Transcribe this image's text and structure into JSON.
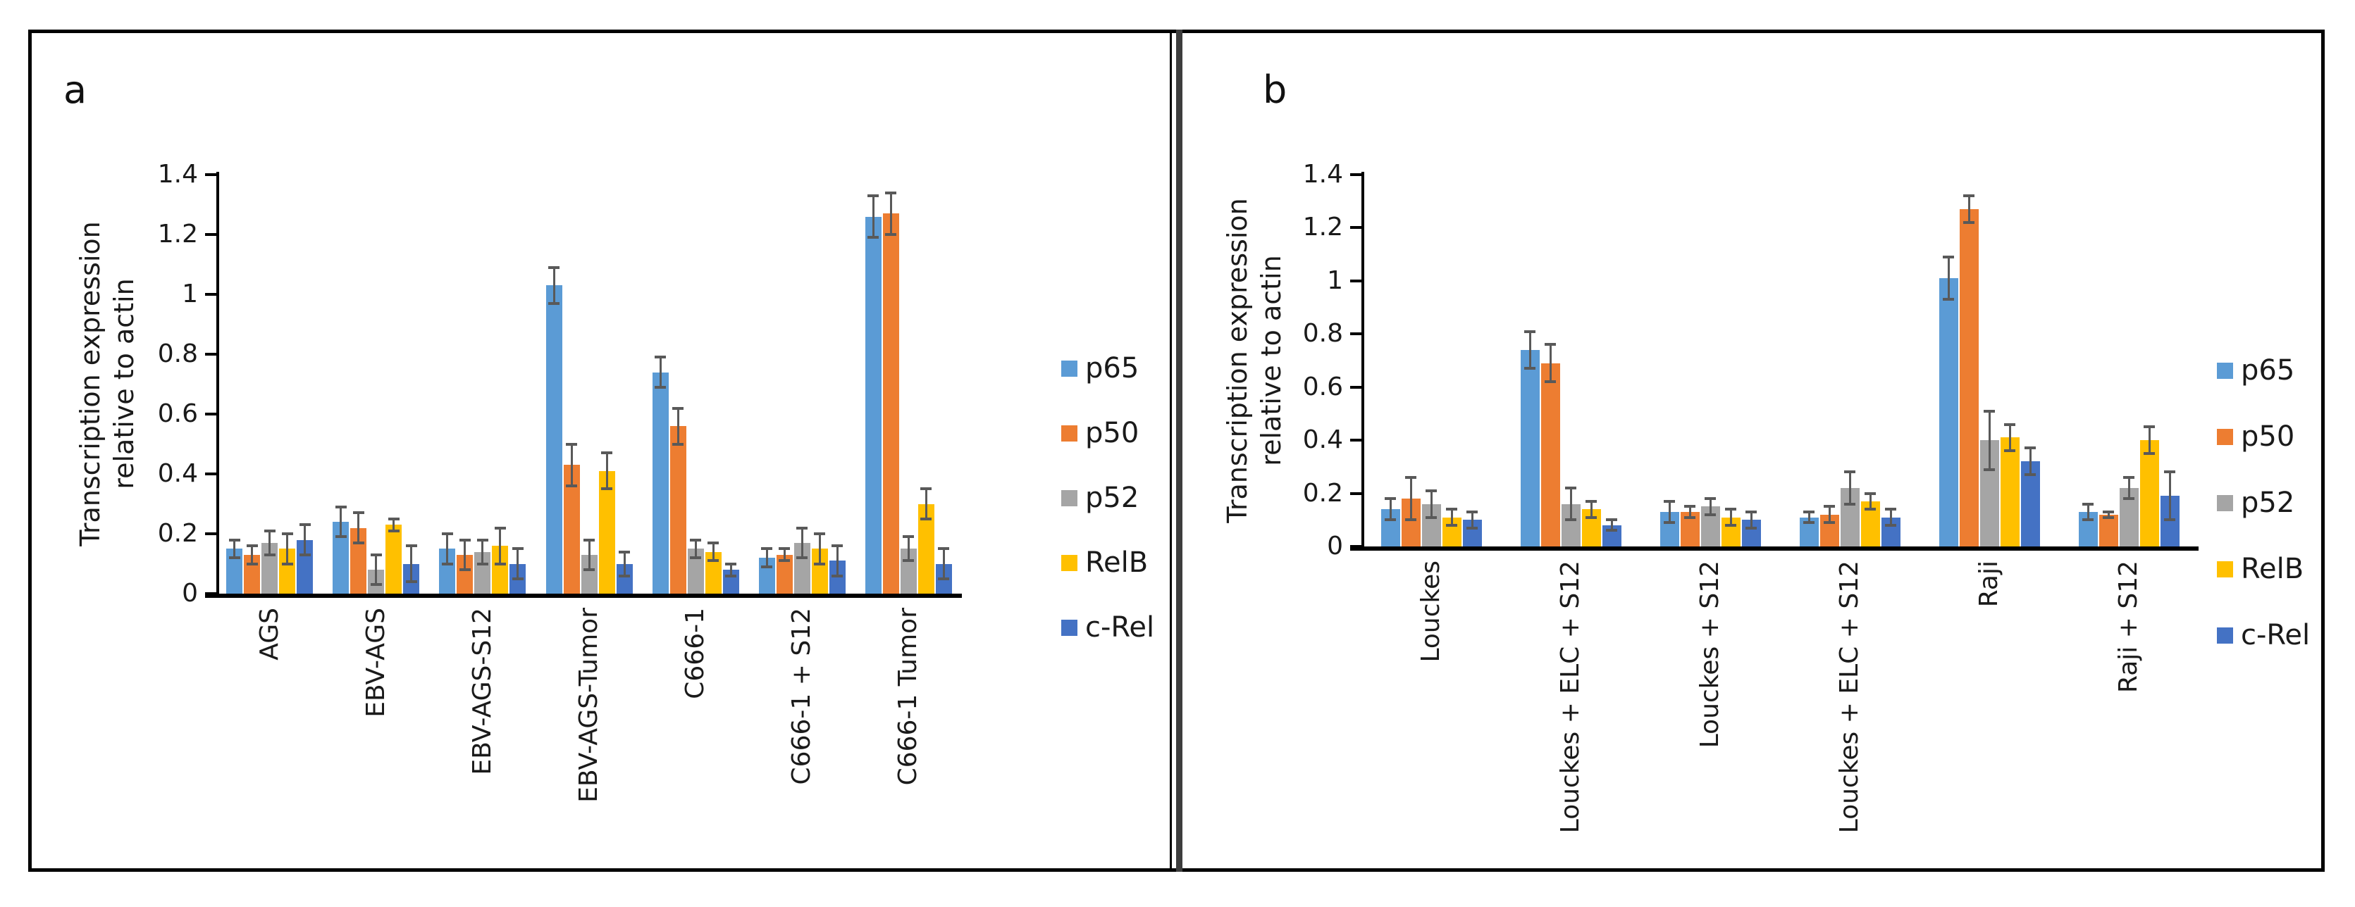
{
  "figure": {
    "background": "#ffffff",
    "border_color": "#000000",
    "panels": [
      {
        "letter": "a",
        "y_axis_label_line1": "Transcription expression",
        "y_axis_label_line2": "relative to actin",
        "y_tick_labels": [
          "1.4",
          "1.2",
          "1",
          "0.8",
          "0.6",
          "0.4",
          "0.2",
          "0"
        ]
      },
      {
        "letter": "b",
        "y_axis_label_line1": "Transcription expression",
        "y_axis_label_line2": "relative to actin",
        "y_tick_labels": [
          "1.4",
          "1.2",
          "1",
          "0.8",
          "0.6",
          "0.4",
          "0.2",
          "0"
        ]
      }
    ]
  },
  "chart_data": [
    {
      "type": "bar",
      "panel": "a",
      "title": "a",
      "ylabel": "Transcription expression relative to actin",
      "xlabel": "",
      "ylim": [
        0,
        1.4
      ],
      "ytick_step": 0.2,
      "grid": false,
      "legend_position": "right",
      "error_bar_color": "#595959",
      "axis_color": "#000000",
      "categories": [
        "AGS",
        "EBV-AGS",
        "EBV-AGS-S12",
        "EBV-AGS-Tumor",
        "C666-1",
        "C666-1 + S12",
        "C666-1 Tumor"
      ],
      "series": [
        {
          "name": "p65",
          "color": "#5B9BD5",
          "values": [
            0.15,
            0.24,
            0.15,
            1.03,
            0.74,
            0.12,
            1.26
          ],
          "errors": [
            0.03,
            0.05,
            0.05,
            0.06,
            0.05,
            0.03,
            0.07
          ]
        },
        {
          "name": "p50",
          "color": "#ED7D31",
          "values": [
            0.13,
            0.22,
            0.13,
            0.43,
            0.56,
            0.13,
            1.27
          ],
          "errors": [
            0.03,
            0.05,
            0.05,
            0.07,
            0.06,
            0.02,
            0.07
          ]
        },
        {
          "name": "p52",
          "color": "#A5A5A5",
          "values": [
            0.17,
            0.08,
            0.14,
            0.13,
            0.15,
            0.17,
            0.15
          ],
          "errors": [
            0.04,
            0.05,
            0.04,
            0.05,
            0.03,
            0.05,
            0.04
          ]
        },
        {
          "name": "RelB",
          "color": "#FFC000",
          "values": [
            0.15,
            0.23,
            0.16,
            0.41,
            0.14,
            0.15,
            0.3
          ],
          "errors": [
            0.05,
            0.02,
            0.06,
            0.06,
            0.03,
            0.05,
            0.05
          ]
        },
        {
          "name": "c-Rel",
          "color": "#4472C4",
          "values": [
            0.18,
            0.1,
            0.1,
            0.1,
            0.08,
            0.11,
            0.1
          ],
          "errors": [
            0.05,
            0.06,
            0.05,
            0.04,
            0.02,
            0.05,
            0.05
          ]
        }
      ]
    },
    {
      "type": "bar",
      "panel": "b",
      "title": "b",
      "ylabel": "Transcription expression relative to actin",
      "xlabel": "",
      "ylim": [
        0,
        1.4
      ],
      "ytick_step": 0.2,
      "grid": false,
      "legend_position": "right",
      "error_bar_color": "#595959",
      "axis_color": "#000000",
      "categories": [
        "Louckes",
        "Louckes + ELC + S12",
        "Louckes + S12",
        "Louckes + ELC + S12",
        "Raji",
        "Raji + S12"
      ],
      "series": [
        {
          "name": "p65",
          "color": "#5B9BD5",
          "values": [
            0.14,
            0.74,
            0.13,
            0.11,
            1.01,
            0.13
          ],
          "errors": [
            0.04,
            0.07,
            0.04,
            0.02,
            0.08,
            0.03
          ]
        },
        {
          "name": "p50",
          "color": "#ED7D31",
          "values": [
            0.18,
            0.69,
            0.13,
            0.12,
            1.27,
            0.12
          ],
          "errors": [
            0.08,
            0.07,
            0.02,
            0.03,
            0.05,
            0.01
          ]
        },
        {
          "name": "p52",
          "color": "#A5A5A5",
          "values": [
            0.16,
            0.16,
            0.15,
            0.22,
            0.4,
            0.22
          ],
          "errors": [
            0.05,
            0.06,
            0.03,
            0.06,
            0.11,
            0.04
          ]
        },
        {
          "name": "RelB",
          "color": "#FFC000",
          "values": [
            0.11,
            0.14,
            0.11,
            0.17,
            0.41,
            0.4
          ],
          "errors": [
            0.03,
            0.03,
            0.03,
            0.03,
            0.05,
            0.05
          ]
        },
        {
          "name": "c-Rel",
          "color": "#4472C4",
          "values": [
            0.1,
            0.08,
            0.1,
            0.11,
            0.32,
            0.19
          ],
          "errors": [
            0.03,
            0.02,
            0.03,
            0.03,
            0.05,
            0.09
          ]
        }
      ]
    }
  ]
}
